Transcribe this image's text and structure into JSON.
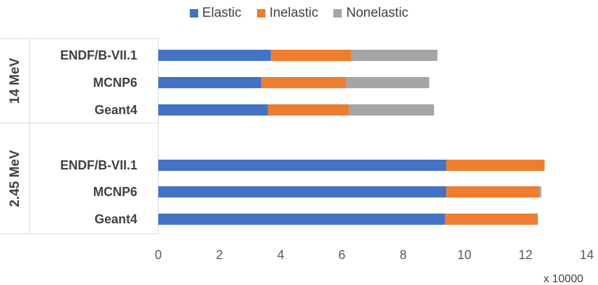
{
  "chart_data": {
    "type": "bar",
    "orientation": "horizontal",
    "stacked": true,
    "legend": {
      "position": "top",
      "entries": [
        {
          "name": "Elastic",
          "color": "#4472C4"
        },
        {
          "name": "Inelastic",
          "color": "#ED7D31"
        },
        {
          "name": "Nonelastic",
          "color": "#A5A5A5"
        }
      ]
    },
    "groups": [
      {
        "label": "14 MeV",
        "categories": [
          "ENDF/B-VII.1",
          "MCNP6",
          "Geant4"
        ]
      },
      {
        "label": "2.45 MeV",
        "categories": [
          "ENDF/B-VII.1",
          "MCNP6",
          "Geant4"
        ]
      }
    ],
    "rows": [
      {
        "group": "14 MeV",
        "category": "ENDF/B-VII.1",
        "values": [
          3.68,
          2.62,
          2.82
        ]
      },
      {
        "group": "14 MeV",
        "category": "MCNP6",
        "values": [
          3.37,
          2.76,
          2.72
        ]
      },
      {
        "group": "14 MeV",
        "category": "Geant4",
        "values": [
          3.58,
          2.66,
          2.77
        ]
      },
      {
        "group": "2.45 MeV",
        "category": "ENDF/B-VII.1",
        "values": [
          9.41,
          3.21,
          0
        ]
      },
      {
        "group": "2.45 MeV",
        "category": "MCNP6",
        "values": [
          9.41,
          3.05,
          0.05
        ]
      },
      {
        "group": "2.45 MeV",
        "category": "Geant4",
        "values": [
          9.37,
          3.03,
          0
        ]
      }
    ],
    "xaxis": {
      "range": [
        0,
        14
      ],
      "ticks": [
        0,
        2,
        4,
        6,
        8,
        10,
        12,
        14
      ],
      "unit_label": "x 10000"
    },
    "grid": false
  }
}
